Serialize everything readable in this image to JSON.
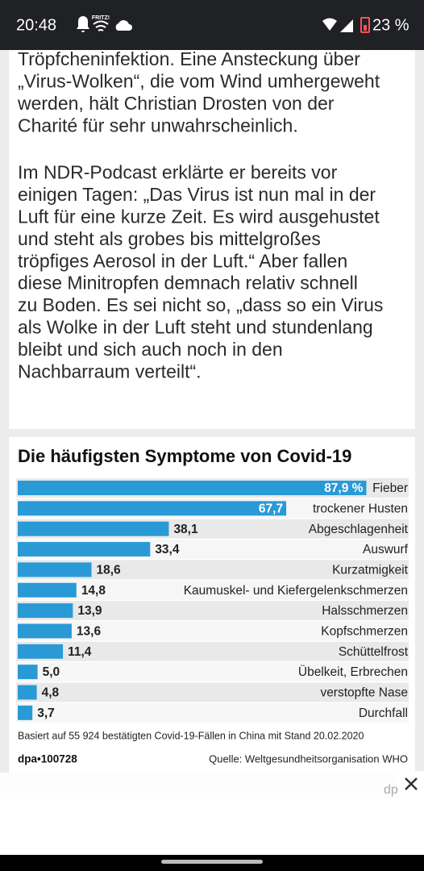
{
  "status_bar": {
    "time": "20:48",
    "network_label": "FRITZ!",
    "battery": "23 %"
  },
  "article": {
    "paragraphs": [
      [
        "Tröpfcheninfektion. Eine Ansteckung über",
        "„Virus-Wolken“, die vom Wind umhergeweht",
        "werden, hält Christian Drosten von der",
        "Charité für sehr unwahrscheinlich."
      ],
      [
        "Im NDR-Podcast erklärte er bereits vor",
        "einigen Tagen: „Das Virus ist nun mal in der",
        "Luft für eine kurze Zeit. Es wird ausgehustet",
        "und steht als grobes bis mittelgroßes",
        "tröpfiges Aerosol in der Luft.“ Aber fallen",
        "diese Minitropfen demnach relativ schnell",
        "zu Boden. Es sei nicht so, „dass so ein Virus",
        "als Wolke in der Luft steht und stundenlang",
        "bleibt und sich auch noch in den",
        "Nachbarraum verteilt“."
      ]
    ]
  },
  "chart_data": {
    "type": "bar",
    "orientation": "horizontal",
    "title": "Die häufigsten Symptome von Covid-19",
    "categories": [
      "Fieber",
      "trockener Husten",
      "Abgeschlagenheit",
      "Auswurf",
      "Kurzatmigkeit",
      "Kaumuskel- und Kiefergelenkschmerzen",
      "Halsschmerzen",
      "Kopfschmerzen",
      "Schüttelfrost",
      "Übelkeit, Erbrechen",
      "verstopfte Nase",
      "Durchfall"
    ],
    "values": [
      87.9,
      67.7,
      38.1,
      33.4,
      18.6,
      14.8,
      13.9,
      13.6,
      11.4,
      5.0,
      4.8,
      3.7
    ],
    "value_labels": [
      "87,9 %",
      "67,7",
      "38,1",
      "33,4",
      "18,6",
      "14,8",
      "13,9",
      "13,6",
      "11,4",
      "5,0",
      "4,8",
      "3,7"
    ],
    "color": "#2a9ad6",
    "note": "Basiert auf 55 924 bestätigten Covid-19-Fällen in China mit Stand 20.02.2020",
    "credit": "dpa•100728",
    "source": "Quelle: Weltgesundheitsorganisation WHO"
  },
  "ad": {
    "text": "dp"
  }
}
